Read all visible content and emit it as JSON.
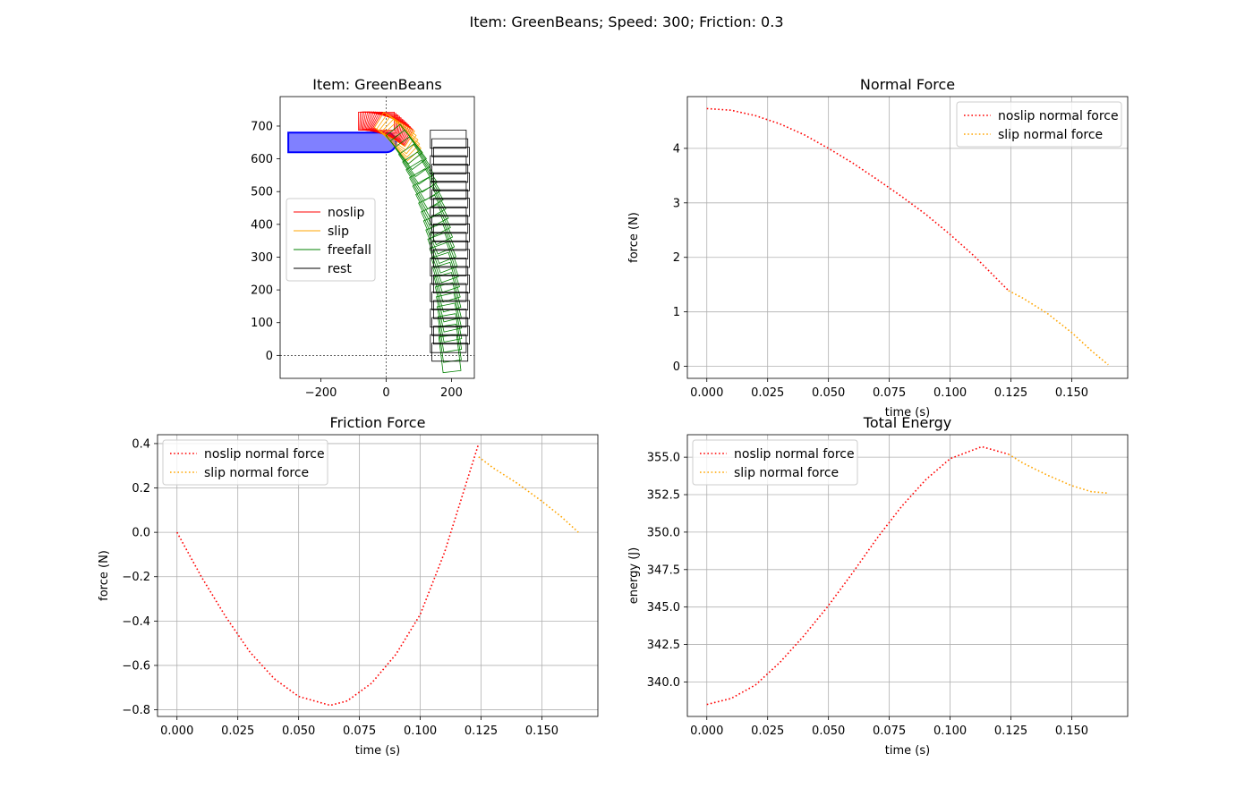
{
  "figure": {
    "suptitle": "Item: GreenBeans; Speed: 300; Friction: 0.3"
  },
  "colors": {
    "noslip": "#ff0000",
    "slip": "#ffa500",
    "freefall": "#008000",
    "rest": "#000000",
    "conveyor_fill": "#8080ff",
    "conveyor_edge": "#0000ff",
    "grid": "#b0b0b0"
  },
  "chart_data": [
    {
      "type": "trajectory",
      "title": "Item: GreenBeans",
      "xlabel": "",
      "ylabel": "",
      "xlim": [
        -325,
        270
      ],
      "ylim": [
        -70,
        790
      ],
      "xticks": [
        -200,
        0,
        200
      ],
      "yticks": [
        0,
        100,
        200,
        300,
        400,
        500,
        600,
        700
      ],
      "grid": false,
      "legend_position": "center-left",
      "legend": [
        "noslip",
        "slip",
        "freefall",
        "rest"
      ],
      "conveyor": {
        "x_start": -300,
        "x_end": 0,
        "y_bottom": 620,
        "y_top": 680
      }
    },
    {
      "type": "line",
      "title": "Normal Force",
      "xlabel": "time (s)",
      "ylabel": "force (N)",
      "xlim": [
        -0.008,
        0.173
      ],
      "ylim": [
        -0.22,
        4.95
      ],
      "xticks": [
        0.0,
        0.025,
        0.05,
        0.075,
        0.1,
        0.125,
        0.15
      ],
      "yticks": [
        0,
        1,
        2,
        3,
        4
      ],
      "grid": true,
      "legend_position": "top-right",
      "series": [
        {
          "name": "noslip normal force",
          "x": [
            0,
            0.01,
            0.02,
            0.03,
            0.04,
            0.05,
            0.06,
            0.07,
            0.08,
            0.09,
            0.1,
            0.11,
            0.124
          ],
          "y": [
            4.73,
            4.7,
            4.6,
            4.45,
            4.25,
            4.0,
            3.73,
            3.43,
            3.12,
            2.79,
            2.42,
            2.02,
            1.39
          ]
        },
        {
          "name": "slip normal force",
          "x": [
            0.124,
            0.13,
            0.14,
            0.15,
            0.158,
            0.165
          ],
          "y": [
            1.39,
            1.25,
            0.97,
            0.62,
            0.29,
            0.03
          ]
        }
      ]
    },
    {
      "type": "line",
      "title": "Friction Force",
      "xlabel": "time (s)",
      "ylabel": "force (N)",
      "xlim": [
        -0.008,
        0.173
      ],
      "ylim": [
        -0.83,
        0.44
      ],
      "xticks": [
        0.0,
        0.025,
        0.05,
        0.075,
        0.1,
        0.125,
        0.15
      ],
      "yticks": [
        -0.8,
        -0.6,
        -0.4,
        -0.2,
        0.0,
        0.2,
        0.4
      ],
      "grid": true,
      "legend_position": "top-left",
      "series": [
        {
          "name": "noslip normal force",
          "x": [
            0,
            0.01,
            0.02,
            0.03,
            0.04,
            0.05,
            0.063,
            0.07,
            0.08,
            0.09,
            0.1,
            0.11,
            0.124
          ],
          "y": [
            0.0,
            -0.2,
            -0.38,
            -0.54,
            -0.66,
            -0.74,
            -0.78,
            -0.76,
            -0.68,
            -0.55,
            -0.37,
            -0.09,
            0.4
          ]
        },
        {
          "name": "slip normal force",
          "x": [
            0.124,
            0.13,
            0.14,
            0.15,
            0.158,
            0.165
          ],
          "y": [
            0.34,
            0.29,
            0.22,
            0.14,
            0.07,
            0.0
          ]
        }
      ]
    },
    {
      "type": "line",
      "title": "Total Energy",
      "xlabel": "time (s)",
      "ylabel": "energy (J)",
      "xlim": [
        -0.008,
        0.173
      ],
      "ylim": [
        337.7,
        356.5
      ],
      "xticks": [
        0.0,
        0.025,
        0.05,
        0.075,
        0.1,
        0.125,
        0.15
      ],
      "yticks": [
        340.0,
        342.5,
        345.0,
        347.5,
        350.0,
        352.5,
        355.0
      ],
      "grid": true,
      "legend_position": "top-left",
      "series": [
        {
          "name": "noslip normal force",
          "x": [
            0,
            0.01,
            0.02,
            0.03,
            0.04,
            0.05,
            0.06,
            0.07,
            0.08,
            0.09,
            0.1,
            0.113,
            0.124
          ],
          "y": [
            338.5,
            338.9,
            339.8,
            341.3,
            343.1,
            345.1,
            347.3,
            349.6,
            351.7,
            353.5,
            354.9,
            355.7,
            355.2
          ]
        },
        {
          "name": "slip normal force",
          "x": [
            0.124,
            0.13,
            0.14,
            0.15,
            0.158,
            0.165
          ],
          "y": [
            355.2,
            354.6,
            353.8,
            353.1,
            352.7,
            352.6
          ]
        }
      ]
    }
  ]
}
